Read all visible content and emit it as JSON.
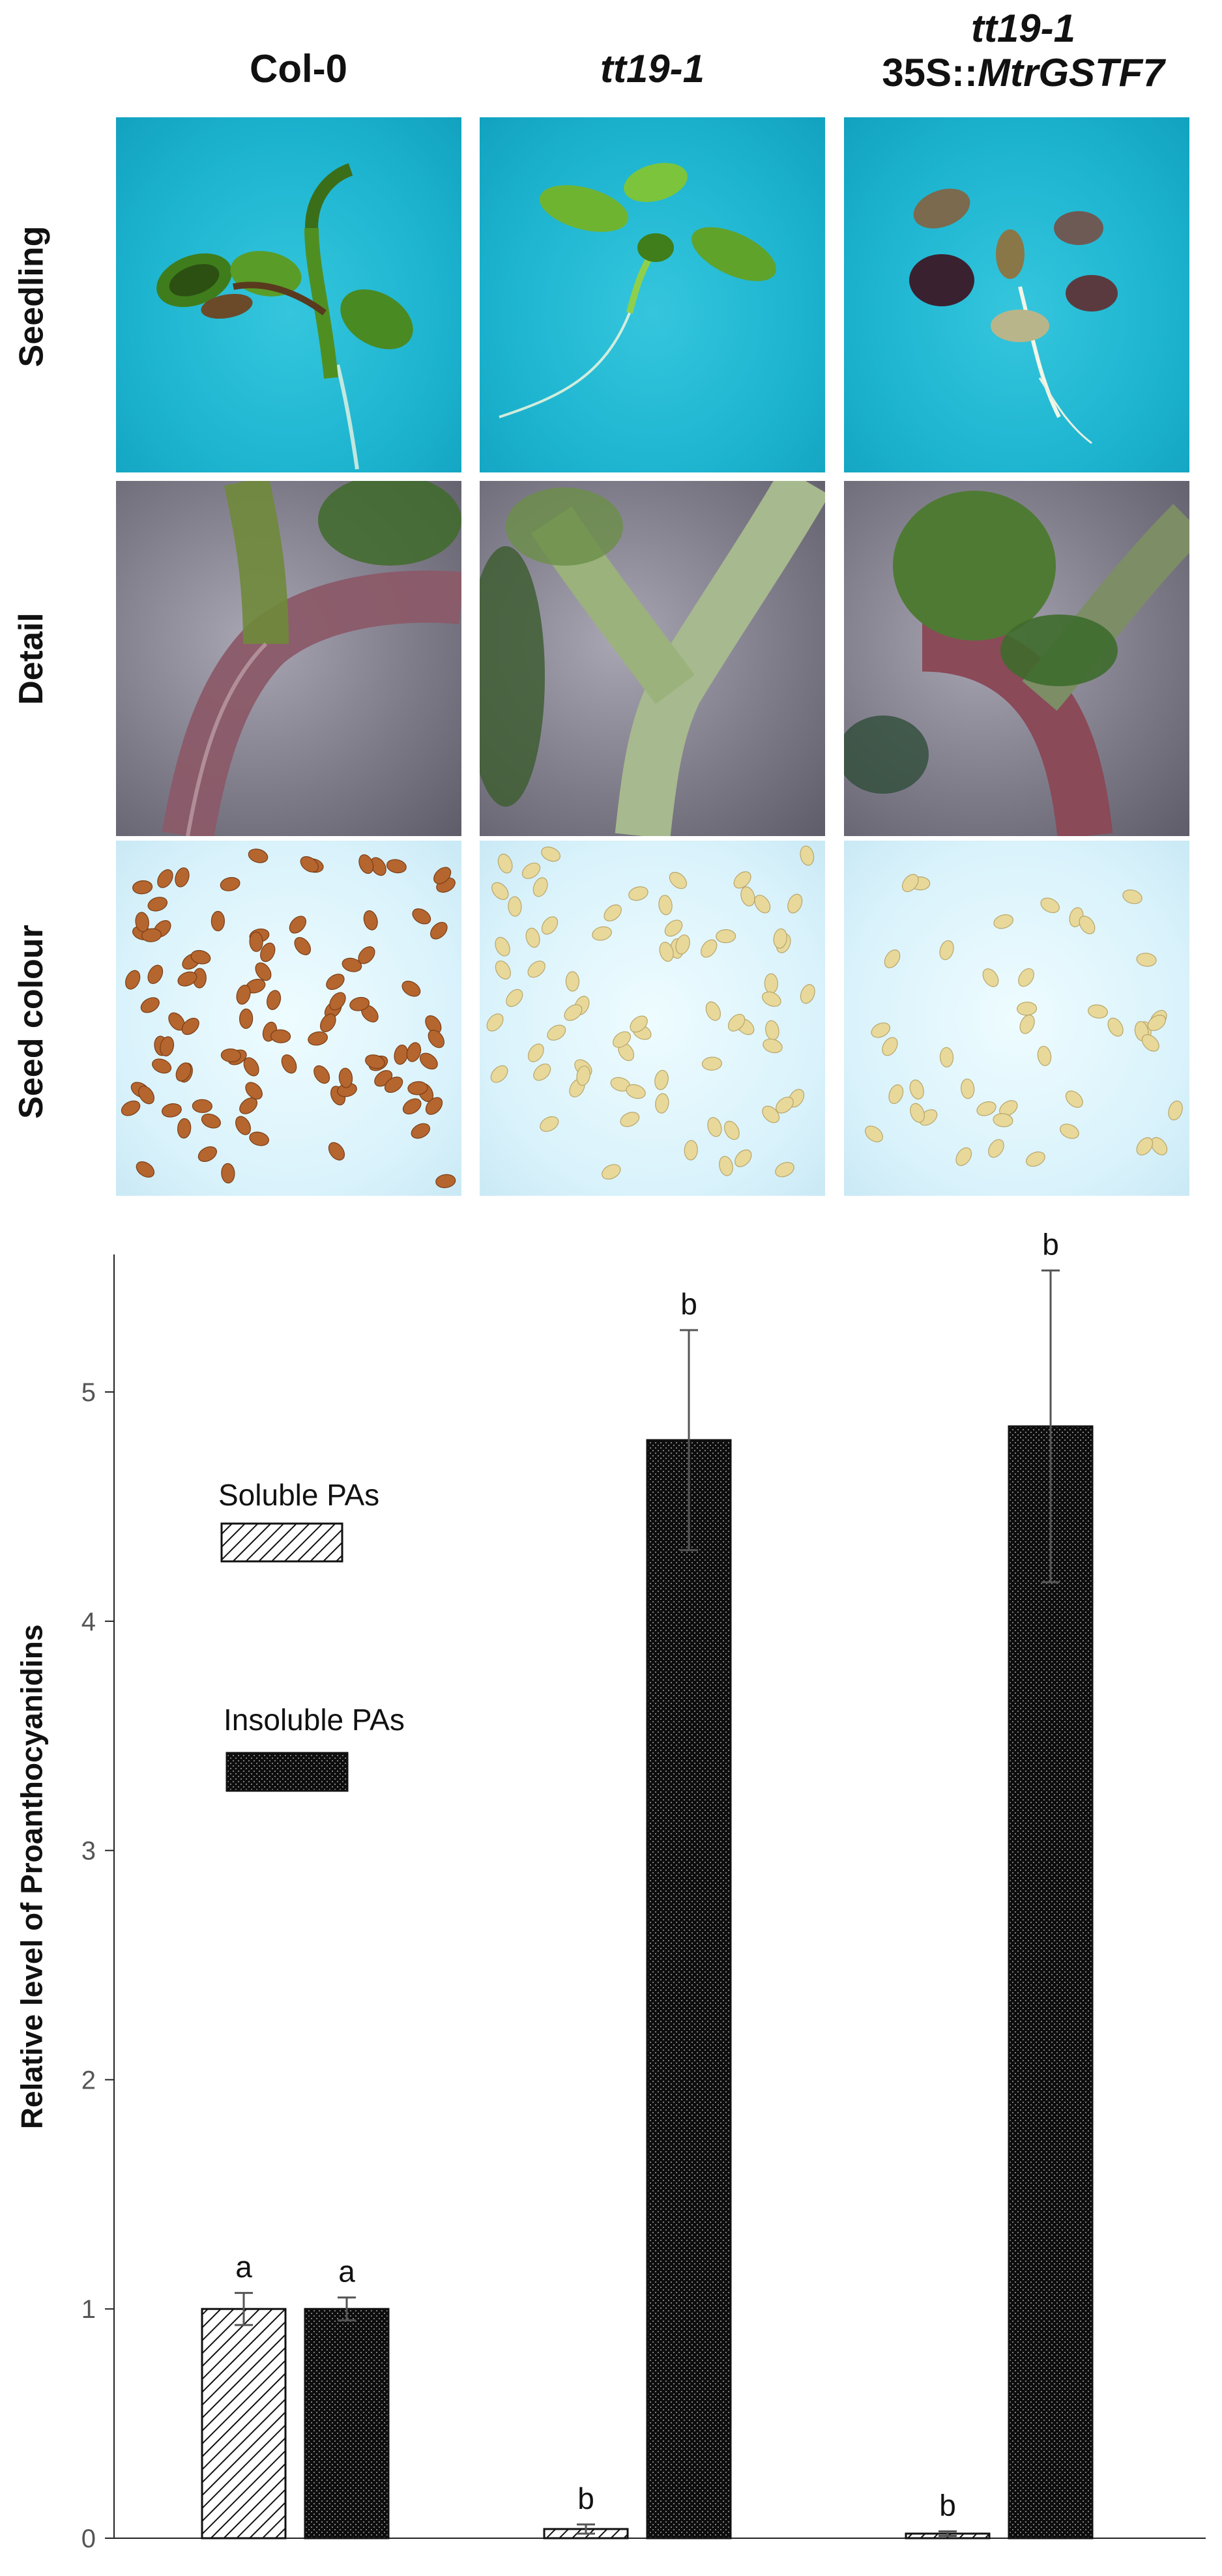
{
  "figure": {
    "columns": [
      {
        "line1": "Col-0",
        "line2_prefix": "",
        "line2_italic": ""
      },
      {
        "line1": "tt19-1",
        "line2_prefix": "",
        "line2_italic": ""
      },
      {
        "line1": "tt19-1",
        "line2_prefix": "35S::",
        "line2_italic": "MtrGSTF7"
      }
    ],
    "rows": [
      "Seedling",
      "Detail",
      "Seed colour"
    ]
  },
  "chart_data": {
    "type": "bar",
    "categories": [
      "Col-0",
      "tt19-1",
      "tt19-1 35S::MtrGSTF7"
    ],
    "ylabel": "Relative level of Proanthocyanidins",
    "xlabel": "",
    "ylim": [
      0,
      5.6
    ],
    "yticks": [
      0,
      1,
      2,
      3,
      4,
      5
    ],
    "grid": false,
    "legend_position": "upper-left",
    "series": [
      {
        "name": "Soluble PAs",
        "pattern": "diagonal-hatch",
        "values": [
          1.0,
          0.04,
          0.02
        ],
        "errors": [
          0.07,
          0.02,
          0.01
        ],
        "labels": [
          "a",
          "b",
          "b"
        ]
      },
      {
        "name": "Insoluble PAs",
        "pattern": "dotted-dark",
        "values": [
          1.0,
          4.79,
          4.85
        ],
        "errors": [
          0.05,
          0.48,
          0.68
        ],
        "labels": [
          "a",
          "b",
          "b"
        ]
      }
    ]
  },
  "colors": {
    "seedling_background": "#1db4d0",
    "detail_background": "#7f7c8a",
    "seed_background": "#e3f6fc",
    "col0_seed": "#b5652e",
    "mutant_seed": "#e8d89a",
    "bar_dark": "#111111"
  }
}
